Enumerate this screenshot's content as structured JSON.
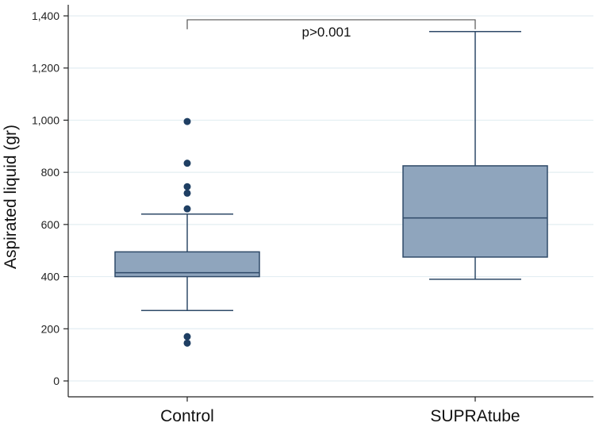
{
  "chart_data": {
    "type": "boxplot",
    "title": "",
    "xlabel": "",
    "ylabel": "Aspirated liquid (gr)",
    "ylim": [
      0,
      1400
    ],
    "yticks": [
      0,
      200,
      400,
      600,
      800,
      1000,
      1200,
      1400
    ],
    "ytick_labels": [
      "0",
      "200",
      "400",
      "600",
      "800",
      "1,000",
      "1,200",
      "1,400"
    ],
    "grid": true,
    "categories": [
      "Control",
      "SUPRAtube"
    ],
    "series": [
      {
        "name": "Control",
        "whisker_low": 270,
        "q1": 400,
        "median": 415,
        "q3": 495,
        "whisker_high": 640,
        "outliers": [
          145,
          170,
          660,
          720,
          745,
          835,
          995
        ]
      },
      {
        "name": "SUPRAtube",
        "whisker_low": 390,
        "q1": 475,
        "median": 625,
        "q3": 825,
        "whisker_high": 1340,
        "outliers": []
      }
    ],
    "annotation": {
      "text": "p>0.001",
      "bracket_y": 1385,
      "between": [
        "Control",
        "SUPRAtube"
      ]
    },
    "colors": {
      "box_fill": "#8fa5bd",
      "box_line": "#2f4a68",
      "outlier": "#1f3f63",
      "grid": "#e3eef2",
      "axis": "#222222"
    }
  }
}
